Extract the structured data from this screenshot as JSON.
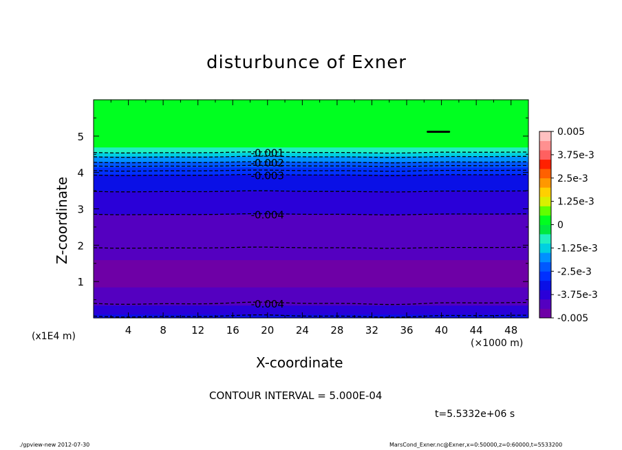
{
  "chart_data": {
    "type": "heatmap",
    "title": "disturbunce of Exner",
    "xlabel": "X-coordinate",
    "ylabel": "Z-coordinate",
    "x_scale_label": "(×1000 m)",
    "y_scale_label": "(x1E4 m)",
    "xlim": [
      0,
      50
    ],
    "ylim": [
      0,
      6
    ],
    "x_ticks": [
      4,
      8,
      12,
      16,
      20,
      24,
      28,
      32,
      36,
      40,
      44,
      48
    ],
    "y_ticks": [
      1,
      2,
      3,
      4,
      5
    ],
    "colorbar": {
      "vmin": -0.005,
      "vmax": 0.005,
      "tick_labels": [
        "0.005",
        "3.75e-3",
        "2.5e-3",
        "1.25e-3",
        "0",
        "-1.25e-3",
        "-2.5e-3",
        "-3.75e-3",
        "-0.005"
      ],
      "tick_values": [
        0.005,
        0.00375,
        0.0025,
        0.00125,
        0,
        -0.00125,
        -0.0025,
        -0.00375,
        -0.005
      ],
      "colors": [
        "#6e00a6",
        "#5400c0",
        "#2a00d8",
        "#0a10e6",
        "#0030ff",
        "#0058ff",
        "#0090ff",
        "#00d0e0",
        "#20f0c0",
        "#00e840",
        "#00ff20",
        "#60ff00",
        "#d8f000",
        "#ffd000",
        "#ff9800",
        "#ff6000",
        "#ff2000",
        "#ff6060",
        "#ff9090",
        "#ffc0c0"
      ]
    },
    "bands_z_to_value": [
      {
        "z0": 0.0,
        "z1": 0.1,
        "value": -0.0034
      },
      {
        "z0": 0.1,
        "z1": 0.35,
        "value": -0.0038
      },
      {
        "z0": 0.35,
        "z1": 0.55,
        "value": -0.0041
      },
      {
        "z0": 0.55,
        "z1": 0.85,
        "value": -0.0044
      },
      {
        "z0": 0.85,
        "z1": 1.05,
        "value": -0.0047
      },
      {
        "z0": 1.05,
        "z1": 1.4,
        "value": -0.0049
      },
      {
        "z0": 1.4,
        "z1": 1.6,
        "value": -0.0047
      },
      {
        "z0": 1.6,
        "z1": 1.95,
        "value": -0.0045
      },
      {
        "z0": 1.95,
        "z1": 2.4,
        "value": -0.0043
      },
      {
        "z0": 2.4,
        "z1": 2.85,
        "value": -0.0041
      },
      {
        "z0": 2.85,
        "z1": 3.2,
        "value": -0.0039
      },
      {
        "z0": 3.2,
        "z1": 3.5,
        "value": -0.0037
      },
      {
        "z0": 3.5,
        "z1": 3.8,
        "value": -0.0035
      },
      {
        "z0": 3.8,
        "z1": 3.95,
        "value": -0.0031
      },
      {
        "z0": 3.95,
        "z1": 4.15,
        "value": -0.0027
      },
      {
        "z0": 4.15,
        "z1": 4.3,
        "value": -0.0021
      },
      {
        "z0": 4.3,
        "z1": 4.45,
        "value": -0.0016
      },
      {
        "z0": 4.45,
        "z1": 4.55,
        "value": -0.0011
      },
      {
        "z0": 4.55,
        "z1": 4.7,
        "value": -0.0006
      },
      {
        "z0": 4.7,
        "z1": 6.0,
        "value": 0.0001
      }
    ],
    "contours": [
      {
        "label": "-0.001",
        "z": 4.55,
        "label_x": 20
      },
      {
        "label": "-0.002",
        "z": 4.28,
        "label_x": 20
      },
      {
        "label": "-0.003",
        "z": 3.93,
        "label_x": 20
      },
      {
        "label": "-0.004",
        "z": 2.85,
        "label_x": 20
      },
      {
        "label": "-0.004",
        "z": 0.4,
        "label_x": 20
      }
    ],
    "extra_contour_levels_z": [
      4.43,
      4.18,
      4.05,
      3.48,
      1.93,
      0.05
    ],
    "blob": {
      "x0": 38.3,
      "x1": 41.0,
      "z": 5.12
    }
  },
  "annotations": {
    "contour_interval": "CONTOUR INTERVAL = 5.000E-04",
    "time": "t=5.5332e+06 s",
    "footer_left": "./gpview-new  2012-07-30",
    "footer_right": "MarsCond_Exner.nc@Exner,x=0:50000,z=0:60000,t=5533200"
  }
}
